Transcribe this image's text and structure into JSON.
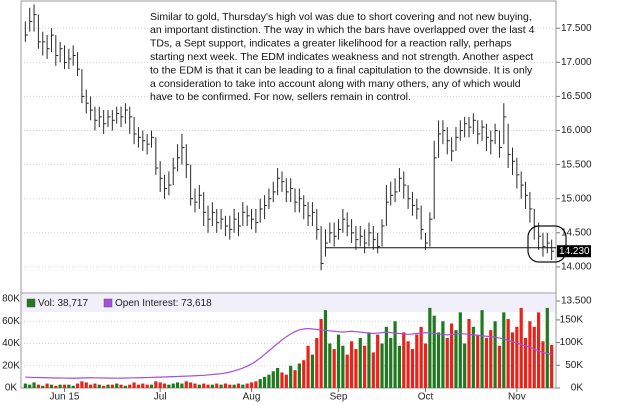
{
  "chart_data": [
    {
      "type": "ohlc",
      "annotation": [
        "Similar to gold, Thursday's high vol was due to short covering and not new buying,",
        "an important distinction.  The way in which the bars have overlapped over the last 4",
        "TDs, a Sept support, indicates a greater likelihood for a reaction rally, perhaps",
        "starting next week.  The EDM indicates weakness and not strength.  Another aspect",
        "to the EDM is that it can be leading to a final capitulation to the downside.  It is only",
        "a consideration to take into account along with many others, any of which would",
        "have to be confirmed.  For now, sellers remain in control."
      ],
      "last_label": "14.230",
      "support": {
        "y": 14.28,
        "x_start": 69
      },
      "color": "#2a2a2a",
      "grid": true,
      "xlim": [
        -1,
        122
      ],
      "ylim": [
        13.5,
        17.87
      ],
      "yticks": [
        {
          "value": 13.5,
          "label": "13.500"
        },
        {
          "value": 14,
          "label": "14.000"
        },
        {
          "value": 14.5,
          "label": "14.500"
        },
        {
          "value": 15,
          "label": "15.000"
        },
        {
          "value": 15.5,
          "label": "15.500"
        },
        {
          "value": 16,
          "label": "16.000"
        },
        {
          "value": 16.5,
          "label": "16.500"
        },
        {
          "value": 17,
          "label": "17.000"
        },
        {
          "value": 17.5,
          "label": "17.500"
        }
      ],
      "x": [
        0,
        1,
        2,
        3,
        4,
        5,
        6,
        7,
        8,
        9,
        10,
        11,
        12,
        13,
        14,
        15,
        16,
        17,
        18,
        19,
        20,
        21,
        22,
        23,
        24,
        25,
        26,
        27,
        28,
        29,
        30,
        31,
        32,
        33,
        34,
        35,
        36,
        37,
        38,
        39,
        40,
        41,
        42,
        43,
        44,
        45,
        46,
        47,
        48,
        49,
        50,
        51,
        52,
        53,
        54,
        55,
        56,
        57,
        58,
        59,
        60,
        61,
        62,
        63,
        64,
        65,
        66,
        67,
        68,
        69,
        70,
        71,
        72,
        73,
        74,
        75,
        76,
        77,
        78,
        79,
        80,
        81,
        82,
        83,
        84,
        85,
        86,
        87,
        88,
        89,
        90,
        91,
        92,
        93,
        94,
        95,
        96,
        97,
        98,
        99,
        100,
        101,
        102,
        103,
        104,
        105,
        106,
        107,
        108,
        109,
        110,
        111,
        112,
        113,
        114,
        115,
        116,
        117,
        118,
        119,
        120,
        121
      ],
      "high": [
        17.6,
        17.8,
        17.85,
        17.7,
        17.45,
        17.4,
        17.5,
        17.4,
        17.3,
        17.25,
        17.2,
        17.25,
        17.15,
        16.9,
        16.6,
        16.5,
        16.35,
        16.35,
        16.3,
        16.3,
        16.3,
        16.35,
        16.35,
        16.4,
        16.35,
        16.2,
        16.05,
        16.0,
        15.95,
        16.0,
        15.9,
        15.55,
        15.35,
        15.4,
        15.6,
        15.8,
        15.95,
        15.8,
        15.5,
        15.15,
        15.2,
        15.1,
        14.9,
        14.95,
        14.85,
        14.85,
        14.75,
        14.75,
        14.85,
        14.8,
        14.95,
        14.9,
        14.85,
        14.85,
        15.0,
        15.05,
        15.15,
        15.25,
        15.45,
        15.4,
        15.3,
        15.3,
        15.15,
        15.15,
        15.05,
        14.95,
        14.95,
        14.85,
        14.6,
        14.55,
        14.65,
        14.65,
        14.7,
        14.85,
        14.8,
        14.7,
        14.6,
        14.6,
        14.55,
        14.65,
        14.6,
        14.5,
        14.7,
        15.2,
        15.25,
        15.3,
        15.45,
        15.4,
        15.2,
        15.1,
        15.0,
        14.9,
        14.5,
        14.8,
        15.85,
        16.15,
        16.15,
        16.05,
        15.9,
        16.05,
        16.15,
        16.2,
        16.2,
        16.25,
        16.15,
        16.15,
        16.1,
        16.0,
        16.1,
        16.0,
        16.4,
        16.1,
        15.75,
        15.6,
        15.4,
        15.25,
        15.1,
        14.85,
        14.65,
        14.5,
        14.5,
        14.4
      ],
      "low": [
        17.3,
        17.45,
        17.45,
        17.2,
        17.1,
        17.05,
        17.15,
        16.95,
        17.0,
        16.9,
        16.9,
        16.95,
        16.8,
        16.4,
        16.25,
        16.15,
        16.0,
        16.05,
        15.95,
        16.05,
        16.0,
        16.1,
        16.05,
        16.1,
        15.95,
        15.8,
        15.75,
        15.7,
        15.65,
        15.75,
        15.35,
        15.1,
        15.0,
        15.05,
        15.2,
        15.4,
        15.5,
        15.3,
        14.9,
        14.8,
        14.85,
        14.6,
        14.5,
        14.6,
        14.5,
        14.55,
        14.45,
        14.4,
        14.5,
        14.45,
        14.6,
        14.6,
        14.55,
        14.5,
        14.65,
        14.7,
        14.85,
        14.95,
        15.05,
        15.1,
        14.95,
        14.95,
        14.8,
        14.8,
        14.7,
        14.6,
        14.6,
        14.4,
        13.95,
        14.15,
        14.35,
        14.3,
        14.4,
        14.5,
        14.45,
        14.35,
        14.25,
        14.3,
        14.2,
        14.3,
        14.25,
        14.2,
        14.3,
        14.6,
        14.9,
        14.95,
        15.1,
        15.0,
        14.85,
        14.75,
        14.7,
        14.4,
        14.25,
        14.3,
        14.7,
        15.6,
        15.8,
        15.65,
        15.55,
        15.7,
        15.85,
        15.9,
        15.9,
        15.95,
        15.8,
        15.85,
        15.7,
        15.65,
        15.8,
        15.6,
        15.8,
        15.45,
        15.35,
        15.15,
        15.0,
        14.85,
        14.65,
        14.4,
        14.25,
        14.15,
        14.2,
        14.1
      ],
      "close": [
        17.4,
        17.6,
        17.7,
        17.3,
        17.3,
        17.2,
        17.4,
        17.1,
        17.2,
        17.0,
        17.05,
        17.1,
        16.9,
        16.5,
        16.4,
        16.3,
        16.15,
        16.2,
        16.1,
        16.2,
        16.15,
        16.25,
        16.2,
        16.3,
        16.2,
        15.95,
        15.9,
        15.85,
        15.8,
        15.9,
        15.45,
        15.3,
        15.15,
        15.2,
        15.45,
        15.6,
        15.75,
        15.5,
        15.0,
        14.95,
        15.05,
        14.8,
        14.7,
        14.8,
        14.65,
        14.7,
        14.6,
        14.55,
        14.7,
        14.6,
        14.8,
        14.75,
        14.7,
        14.65,
        14.85,
        14.9,
        15.0,
        15.1,
        15.3,
        15.25,
        15.1,
        15.15,
        14.95,
        15.0,
        14.9,
        14.75,
        14.8,
        14.55,
        14.05,
        14.35,
        14.5,
        14.45,
        14.55,
        14.7,
        14.6,
        14.5,
        14.4,
        14.45,
        14.35,
        14.5,
        14.4,
        14.3,
        14.6,
        14.95,
        15.05,
        15.1,
        15.3,
        15.2,
        15.0,
        14.9,
        14.85,
        14.55,
        14.35,
        14.7,
        15.6,
        15.95,
        16.0,
        15.85,
        15.7,
        15.9,
        16.0,
        16.1,
        16.05,
        16.15,
        15.95,
        16.05,
        15.9,
        15.85,
        16.0,
        15.75,
        16.2,
        15.65,
        15.55,
        15.35,
        15.2,
        15.05,
        14.85,
        14.6,
        14.45,
        14.3,
        14.35,
        14.23
      ]
    },
    {
      "type": "volume",
      "grid": true,
      "xlim": [
        -1,
        122
      ],
      "xticks": [
        {
          "value": 9,
          "label": "Jun 15"
        },
        {
          "value": 31,
          "label": "Jul"
        },
        {
          "value": 52,
          "label": "Aug"
        },
        {
          "value": 72,
          "label": "Sep"
        },
        {
          "value": 92,
          "label": "Oct"
        },
        {
          "value": 113,
          "label": "Nov"
        }
      ],
      "ylim": [
        0,
        80000
      ],
      "yticks": [
        {
          "value": 0,
          "label": "0K"
        },
        {
          "value": 20000,
          "label": "20K"
        },
        {
          "value": 40000,
          "label": "40K"
        },
        {
          "value": 60000,
          "label": "60K"
        },
        {
          "value": 80000,
          "label": "80K"
        }
      ],
      "y2lim": [
        0,
        196000
      ],
      "y2ticks": [
        {
          "value": 0,
          "label": "0K"
        },
        {
          "value": 50000,
          "label": "50K"
        },
        {
          "value": 100000,
          "label": "100K"
        },
        {
          "value": 150000,
          "label": "150K"
        }
      ],
      "series": [
        {
          "name": "Vol: 38,717",
          "color": "#1f7a1f",
          "down_color": "#e8241a",
          "values": [
            4000,
            3000,
            5000,
            3000,
            2000,
            4000,
            3000,
            2000,
            3000,
            3000,
            3000,
            2000,
            4000,
            6000,
            5000,
            3000,
            4000,
            3000,
            2000,
            3000,
            3000,
            4000,
            3000,
            2000,
            3000,
            5000,
            3000,
            4000,
            3000,
            3000,
            6000,
            5000,
            4000,
            3000,
            4000,
            5000,
            4000,
            6000,
            5000,
            4000,
            3000,
            4000,
            3000,
            3000,
            4000,
            3000,
            4000,
            3000,
            3000,
            4000,
            3000,
            4000,
            5000,
            6000,
            8000,
            10000,
            12000,
            15000,
            18000,
            14000,
            12000,
            20000,
            16000,
            22000,
            25000,
            38000,
            30000,
            45000,
            62000,
            70000,
            40000,
            35000,
            48000,
            38000,
            30000,
            42000,
            35000,
            45000,
            38000,
            50000,
            32000,
            48000,
            40000,
            55000,
            45000,
            60000,
            38000,
            50000,
            42000,
            35000,
            48000,
            55000,
            40000,
            72000,
            65000,
            50000,
            60000,
            45000,
            58000,
            52000,
            68000,
            40000,
            62000,
            55000,
            48000,
            70000,
            45000,
            52000,
            60000,
            38000,
            68000,
            62000,
            50000,
            55000,
            72000,
            45000,
            60000,
            55000,
            68000,
            42000,
            72000,
            38717
          ]
        },
        {
          "name": "Open Interest: 73,618",
          "color": "#a64ee0",
          "axis": "y2",
          "values": [
            24000,
            23500,
            23000,
            23200,
            22800,
            22500,
            22300,
            22000,
            22100,
            21900,
            21800,
            21500,
            21700,
            22000,
            22300,
            22500,
            22400,
            22200,
            22000,
            21800,
            21700,
            21600,
            21800,
            22000,
            22200,
            22400,
            22600,
            22800,
            23000,
            23300,
            23600,
            24000,
            24300,
            24700,
            25000,
            25400,
            25800,
            26200,
            26600,
            27000,
            27500,
            28000,
            28800,
            29600,
            30500,
            31500,
            33000,
            35000,
            37500,
            40500,
            44000,
            48000,
            53000,
            59000,
            66000,
            74000,
            82000,
            90000,
            98000,
            106000,
            113000,
            119000,
            124000,
            128000,
            130000,
            131000,
            130000,
            129000,
            128000,
            127000,
            126000,
            125000,
            124000,
            123000,
            124000,
            125000,
            124000,
            123000,
            122000,
            121000,
            120000,
            121000,
            122000,
            123000,
            122000,
            121000,
            120000,
            119000,
            118000,
            119000,
            120000,
            121000,
            122000,
            121000,
            120000,
            119000,
            118000,
            117000,
            118000,
            119000,
            120000,
            119000,
            118000,
            117000,
            116000,
            115000,
            114000,
            113000,
            112000,
            110000,
            108000,
            105000,
            102000,
            99000,
            96000,
            93000,
            90000,
            86000,
            82000,
            78000,
            76000,
            73618
          ]
        }
      ]
    }
  ]
}
